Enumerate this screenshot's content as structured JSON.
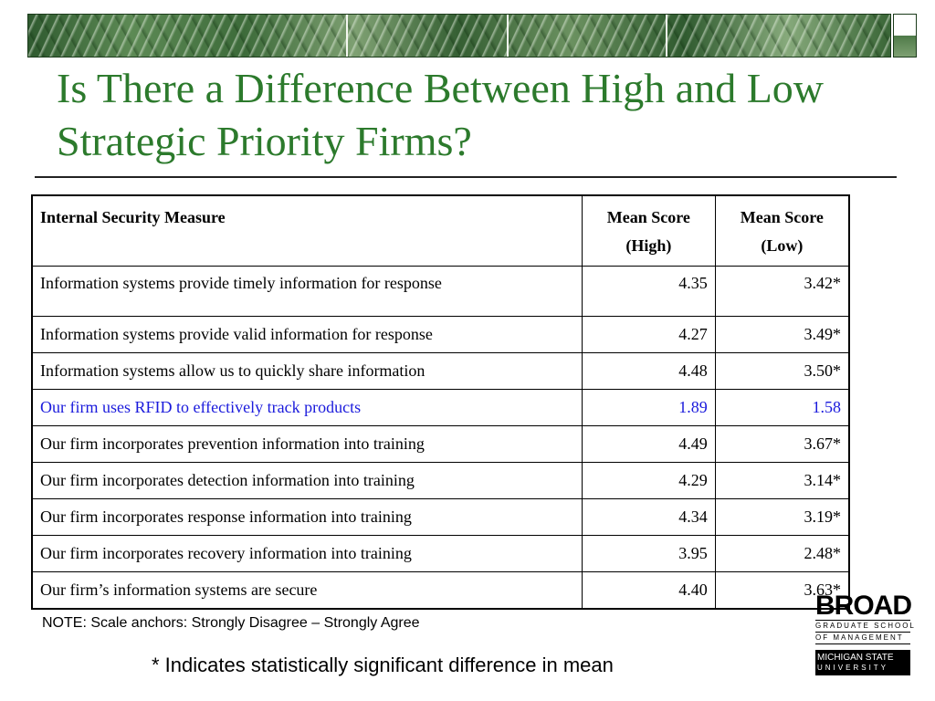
{
  "slide": {
    "title": "Is There a Difference Between High and Low Strategic Priority Firms?"
  },
  "table": {
    "headers": {
      "measure": "Internal Security Measure",
      "high_line1": "Mean Score",
      "high_line2": "(High)",
      "low_line1": "Mean Score",
      "low_line2": "(Low)"
    },
    "rows": [
      {
        "measure": "Information systems provide timely information for response",
        "high": "4.35",
        "low": "3.42*"
      },
      {
        "measure": "Information systems provide valid information for response",
        "high": "4.27",
        "low": "3.49*"
      },
      {
        "measure": "Information systems allow us to quickly share information",
        "high": "4.48",
        "low": "3.50*"
      },
      {
        "measure": "Our firm uses RFID to effectively track products",
        "high": "1.89",
        "low": "1.58"
      },
      {
        "measure": "Our firm incorporates prevention information into training",
        "high": "4.49",
        "low": "3.67*"
      },
      {
        "measure": "Our firm incorporates detection information into training",
        "high": "4.29",
        "low": "3.14*"
      },
      {
        "measure": "Our firm incorporates response information into training",
        "high": "4.34",
        "low": "3.19*"
      },
      {
        "measure": "Our firm incorporates recovery information into training",
        "high": "3.95",
        "low": "2.48*"
      },
      {
        "measure": "Our firm’s information systems are secure",
        "high": "4.40",
        "low": "3.63*"
      }
    ],
    "highlight_color": "#1a1adc"
  },
  "notes": {
    "scale": "NOTE: Scale anchors:  Strongly Disagree – Strongly Agree",
    "footnote": "* Indicates statistically significant difference in mean"
  },
  "logo": {
    "name": "BROAD",
    "line1": "GRADUATE SCHOOL",
    "line2": "OF MANAGEMENT",
    "university_line1": "MICHIGAN STATE",
    "university_line2": "UNIVERSITY"
  },
  "theme": {
    "title_color": "#2c7a2c",
    "banner_color": "#3d6b3a"
  }
}
